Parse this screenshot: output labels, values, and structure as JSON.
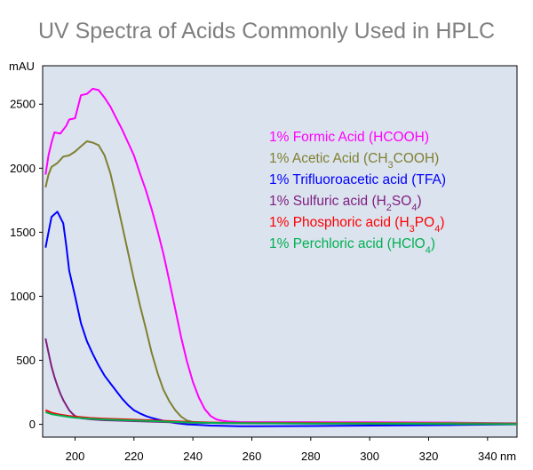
{
  "chart_data": {
    "type": "line",
    "title": "UV Spectra of Acids Commonly Used in HPLC",
    "ylabel": "mAU",
    "xunit": "nm",
    "xlim": [
      189,
      350
    ],
    "ylim": [
      -100,
      2800
    ],
    "xticks": [
      200,
      220,
      240,
      260,
      280,
      300,
      320,
      340
    ],
    "yticks": [
      0,
      500,
      1000,
      1500,
      2000,
      2500
    ],
    "grid": false,
    "legend_position": "upper-right",
    "plot_background": "#dbe3ef",
    "series": [
      {
        "name": "1% Formic Acid (HCOOH)",
        "label_parts": [
          {
            "t": "1% Formic Acid (HCOOH)"
          }
        ],
        "color": "#ff00ff",
        "points": [
          [
            190,
            1950
          ],
          [
            191,
            2100
          ],
          [
            192,
            2200
          ],
          [
            193,
            2280
          ],
          [
            195,
            2270
          ],
          [
            197,
            2330
          ],
          [
            198,
            2380
          ],
          [
            200,
            2390
          ],
          [
            202,
            2570
          ],
          [
            204,
            2580
          ],
          [
            206,
            2620
          ],
          [
            208,
            2610
          ],
          [
            210,
            2550
          ],
          [
            212,
            2480
          ],
          [
            214,
            2390
          ],
          [
            216,
            2300
          ],
          [
            218,
            2200
          ],
          [
            220,
            2100
          ],
          [
            222,
            1960
          ],
          [
            224,
            1830
          ],
          [
            226,
            1680
          ],
          [
            228,
            1510
          ],
          [
            230,
            1330
          ],
          [
            232,
            1120
          ],
          [
            234,
            900
          ],
          [
            236,
            680
          ],
          [
            238,
            490
          ],
          [
            240,
            330
          ],
          [
            242,
            210
          ],
          [
            244,
            120
          ],
          [
            246,
            65
          ],
          [
            248,
            38
          ],
          [
            250,
            28
          ],
          [
            252,
            22
          ],
          [
            256,
            18
          ],
          [
            260,
            17
          ],
          [
            280,
            17
          ],
          [
            300,
            16
          ],
          [
            330,
            13
          ],
          [
            340,
            10
          ],
          [
            350,
            8
          ]
        ]
      },
      {
        "name": "1% Acetic Acid (CH3COOH)",
        "label_parts": [
          {
            "t": "1% Acetic Acid (CH"
          },
          {
            "t": "3",
            "sub": true
          },
          {
            "t": "COOH)"
          }
        ],
        "color": "#808030",
        "points": [
          [
            190,
            1850
          ],
          [
            191,
            1950
          ],
          [
            192,
            2010
          ],
          [
            194,
            2040
          ],
          [
            196,
            2090
          ],
          [
            198,
            2100
          ],
          [
            200,
            2130
          ],
          [
            202,
            2170
          ],
          [
            204,
            2210
          ],
          [
            206,
            2200
          ],
          [
            208,
            2180
          ],
          [
            210,
            2100
          ],
          [
            212,
            1960
          ],
          [
            214,
            1760
          ],
          [
            216,
            1550
          ],
          [
            218,
            1340
          ],
          [
            220,
            1130
          ],
          [
            222,
            930
          ],
          [
            224,
            750
          ],
          [
            226,
            560
          ],
          [
            228,
            400
          ],
          [
            230,
            270
          ],
          [
            232,
            180
          ],
          [
            234,
            110
          ],
          [
            236,
            60
          ],
          [
            238,
            30
          ],
          [
            240,
            18
          ],
          [
            244,
            12
          ],
          [
            260,
            12
          ],
          [
            280,
            12
          ],
          [
            300,
            11
          ],
          [
            330,
            10
          ],
          [
            350,
            7
          ]
        ]
      },
      {
        "name": "1% Trifluoroacetic acid (TFA)",
        "label_parts": [
          {
            "t": "1% Trifluoroacetic acid (TFA)"
          }
        ],
        "color": "#0000ff",
        "points": [
          [
            190,
            1380
          ],
          [
            191,
            1500
          ],
          [
            192,
            1620
          ],
          [
            194,
            1660
          ],
          [
            196,
            1570
          ],
          [
            197,
            1400
          ],
          [
            198,
            1200
          ],
          [
            200,
            1000
          ],
          [
            202,
            790
          ],
          [
            204,
            650
          ],
          [
            206,
            550
          ],
          [
            208,
            460
          ],
          [
            210,
            380
          ],
          [
            212,
            320
          ],
          [
            214,
            260
          ],
          [
            216,
            200
          ],
          [
            218,
            150
          ],
          [
            220,
            110
          ],
          [
            222,
            85
          ],
          [
            224,
            65
          ],
          [
            226,
            50
          ],
          [
            228,
            38
          ],
          [
            230,
            28
          ],
          [
            232,
            18
          ],
          [
            234,
            10
          ],
          [
            238,
            0
          ],
          [
            242,
            -5
          ],
          [
            246,
            -10
          ],
          [
            250,
            -12
          ],
          [
            256,
            -15
          ],
          [
            260,
            -15
          ],
          [
            280,
            -13
          ],
          [
            300,
            -10
          ],
          [
            330,
            -5
          ],
          [
            350,
            0
          ]
        ]
      },
      {
        "name": "1% Sulfuric acid (H2SO4)",
        "label_parts": [
          {
            "t": "1% Sulfuric acid (H"
          },
          {
            "t": "2",
            "sub": true
          },
          {
            "t": "SO"
          },
          {
            "t": "4",
            "sub": true
          },
          {
            "t": ")"
          }
        ],
        "color": "#7f1f80",
        "points": [
          [
            190,
            670
          ],
          [
            191,
            560
          ],
          [
            192,
            450
          ],
          [
            193,
            370
          ],
          [
            194,
            300
          ],
          [
            195,
            240
          ],
          [
            196,
            190
          ],
          [
            197,
            150
          ],
          [
            198,
            110
          ],
          [
            199,
            85
          ],
          [
            200,
            65
          ],
          [
            202,
            48
          ],
          [
            206,
            38
          ],
          [
            210,
            32
          ],
          [
            220,
            25
          ],
          [
            230,
            18
          ],
          [
            240,
            12
          ],
          [
            260,
            8
          ],
          [
            300,
            5
          ],
          [
            350,
            3
          ]
        ]
      },
      {
        "name": "1% Phosphoric acid (H3PO4)",
        "label_parts": [
          {
            "t": "1% Phosphoric acid (H"
          },
          {
            "t": "3",
            "sub": true
          },
          {
            "t": "PO"
          },
          {
            "t": "4",
            "sub": true
          },
          {
            "t": ")"
          }
        ],
        "color": "#ff0000",
        "points": [
          [
            190,
            110
          ],
          [
            192,
            90
          ],
          [
            194,
            80
          ],
          [
            196,
            72
          ],
          [
            198,
            65
          ],
          [
            200,
            60
          ],
          [
            205,
            50
          ],
          [
            210,
            44
          ],
          [
            220,
            36
          ],
          [
            230,
            28
          ],
          [
            240,
            18
          ],
          [
            250,
            12
          ],
          [
            260,
            10
          ],
          [
            280,
            8
          ],
          [
            300,
            6
          ],
          [
            330,
            4
          ],
          [
            350,
            2
          ]
        ]
      },
      {
        "name": "1% Perchloric acid (HClO4)",
        "label_parts": [
          {
            "t": "1% Perchloric acid (HClO"
          },
          {
            "t": "4",
            "sub": true
          },
          {
            "t": ")"
          }
        ],
        "color": "#00b050",
        "points": [
          [
            190,
            95
          ],
          [
            192,
            80
          ],
          [
            195,
            68
          ],
          [
            198,
            58
          ],
          [
            200,
            52
          ],
          [
            205,
            44
          ],
          [
            210,
            38
          ],
          [
            220,
            30
          ],
          [
            230,
            22
          ],
          [
            240,
            14
          ],
          [
            250,
            10
          ],
          [
            260,
            8
          ],
          [
            280,
            6
          ],
          [
            300,
            5
          ],
          [
            330,
            3
          ],
          [
            350,
            1
          ]
        ]
      }
    ]
  }
}
